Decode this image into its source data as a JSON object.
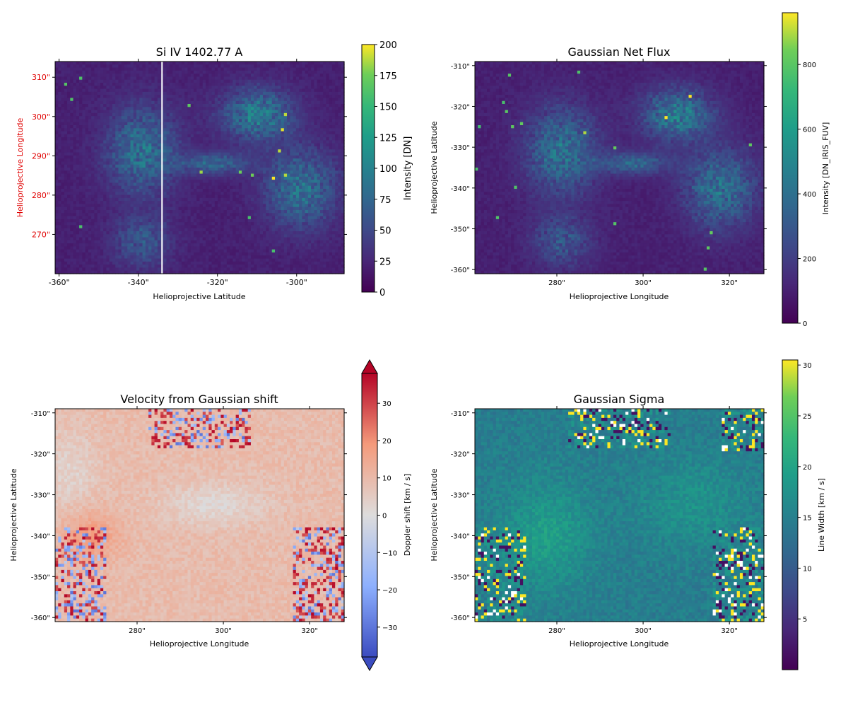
{
  "chart_data": [
    {
      "type": "heatmap",
      "title": "Si IV 1402.77 A",
      "xlabel": "Helioprojective Latitude",
      "ylabel": "Helioprojective Longitude",
      "xlim": [
        -361,
        -288
      ],
      "ylim": [
        260,
        314
      ],
      "x_ticks": [
        "-360\"",
        "-340\"",
        "-320\"",
        "-300\""
      ],
      "x_tick_values": [
        -360,
        -340,
        -320,
        -300
      ],
      "y_ticks": [
        "270\"",
        "280\"",
        "290\"",
        "300\"",
        "310\""
      ],
      "y_tick_values": [
        270,
        280,
        290,
        300,
        310
      ],
      "colorbar": {
        "label": "Intensity [DN]",
        "colormap": "viridis",
        "range": [
          0,
          200
        ],
        "ticks": [
          "0",
          "25",
          "50",
          "75",
          "100",
          "125",
          "150",
          "175",
          "200"
        ],
        "tick_values": [
          0,
          25,
          50,
          75,
          100,
          125,
          150,
          175,
          200
        ]
      },
      "ylabel_color": "#e00000",
      "slit_line_x": -334
    },
    {
      "type": "heatmap",
      "title": "Gaussian Net Flux",
      "xlabel": "Helioprojective Longitude",
      "ylabel": "Helioprojective Latitude",
      "xlim": [
        261,
        328
      ],
      "ylim": [
        -361,
        -309
      ],
      "x_ticks": [
        "280\"",
        "300\"",
        "320\""
      ],
      "x_tick_values": [
        280,
        300,
        320
      ],
      "y_ticks": [
        "-310\"",
        "-320\"",
        "-330\"",
        "-340\"",
        "-350\"",
        "-360\""
      ],
      "y_tick_values": [
        -310,
        -320,
        -330,
        -340,
        -350,
        -360
      ],
      "colorbar": {
        "label": "Intensity [DN_IRIS_FUV]",
        "colormap": "viridis",
        "range": [
          0,
          960
        ],
        "ticks": [
          "0",
          "200",
          "400",
          "600",
          "800"
        ],
        "tick_values": [
          0,
          200,
          400,
          600,
          800
        ]
      }
    },
    {
      "type": "heatmap",
      "title": "Velocity from Gaussian shift",
      "xlabel": "Helioprojective Longitude",
      "ylabel": "Helioprojective Latitude",
      "xlim": [
        261,
        328
      ],
      "ylim": [
        -361,
        -309
      ],
      "x_ticks": [
        "280\"",
        "300\"",
        "320\""
      ],
      "x_tick_values": [
        280,
        300,
        320
      ],
      "y_ticks": [
        "-310\"",
        "-320\"",
        "-330\"",
        "-340\"",
        "-350\"",
        "-360\""
      ],
      "y_tick_values": [
        -310,
        -320,
        -330,
        -340,
        -350,
        -360
      ],
      "colorbar": {
        "label": "Doppler shift [km / s]",
        "colormap": "coolwarm",
        "range": [
          -38,
          38
        ],
        "extend": "both",
        "ticks": [
          "−30",
          "−20",
          "−10",
          "0",
          "10",
          "20",
          "30"
        ],
        "tick_values": [
          -30,
          -20,
          -10,
          0,
          10,
          20,
          30
        ]
      }
    },
    {
      "type": "heatmap",
      "title": "Gaussian Sigma",
      "xlabel": "Helioprojective Longitude",
      "ylabel": "Helioprojective Latitude",
      "xlim": [
        261,
        328
      ],
      "ylim": [
        -361,
        -309
      ],
      "x_ticks": [
        "280\"",
        "300\"",
        "320\""
      ],
      "x_tick_values": [
        280,
        300,
        320
      ],
      "y_ticks": [
        "-310\"",
        "-320\"",
        "-330\"",
        "-340\"",
        "-350\"",
        "-360\""
      ],
      "y_tick_values": [
        -310,
        -320,
        -330,
        -340,
        -350,
        -360
      ],
      "colorbar": {
        "label": "Line Width [km / s]",
        "colormap": "viridis",
        "range": [
          0,
          30.5
        ],
        "ticks": [
          "5",
          "10",
          "15",
          "20",
          "25",
          "30"
        ],
        "tick_values": [
          5,
          10,
          15,
          20,
          25,
          30
        ]
      }
    }
  ]
}
